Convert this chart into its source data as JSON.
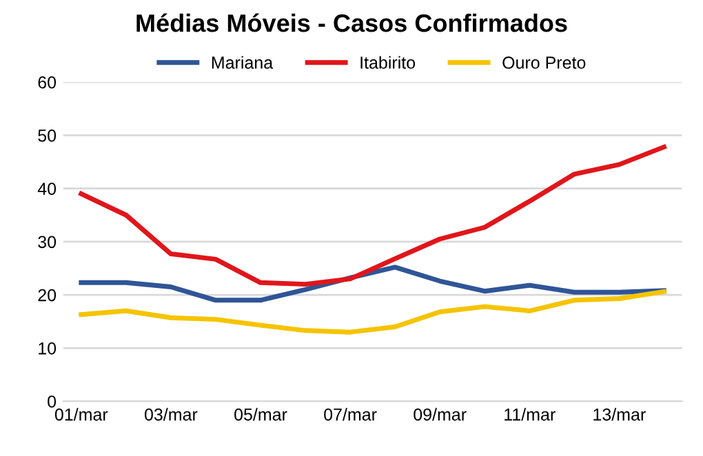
{
  "chart_data": {
    "type": "line",
    "title": "Médias Móveis - Casos Confirmados",
    "categories": [
      "01/mar",
      null,
      "03/mar",
      null,
      "05/mar",
      null,
      "07/mar",
      null,
      "09/mar",
      null,
      "11/mar",
      null,
      "13/mar",
      null
    ],
    "series": [
      {
        "name": "Mariana",
        "color": "#2f5597",
        "values": [
          22.3,
          22.3,
          21.5,
          19,
          19,
          21,
          23.2,
          25.2,
          22.6,
          20.7,
          21.8,
          20.5,
          20.5,
          20.8
        ]
      },
      {
        "name": "Itabirito",
        "color": "#e0161b",
        "values": [
          39,
          35,
          27.7,
          26.7,
          22.3,
          22,
          23,
          26.8,
          30.5,
          32.7,
          37.6,
          42.7,
          44.5,
          47.8
        ]
      },
      {
        "name": "Ouro Preto",
        "color": "#f5c400",
        "values": [
          16.3,
          17,
          15.7,
          15.4,
          14.3,
          13.3,
          13,
          14,
          16.8,
          17.8,
          17,
          19,
          19.3,
          20.6
        ]
      }
    ],
    "ylim": [
      0,
      60
    ],
    "yticks": [
      0,
      10,
      20,
      30,
      40,
      50,
      60
    ],
    "grid": "y",
    "legend": "top",
    "marker": "none",
    "line_style": "solid"
  }
}
